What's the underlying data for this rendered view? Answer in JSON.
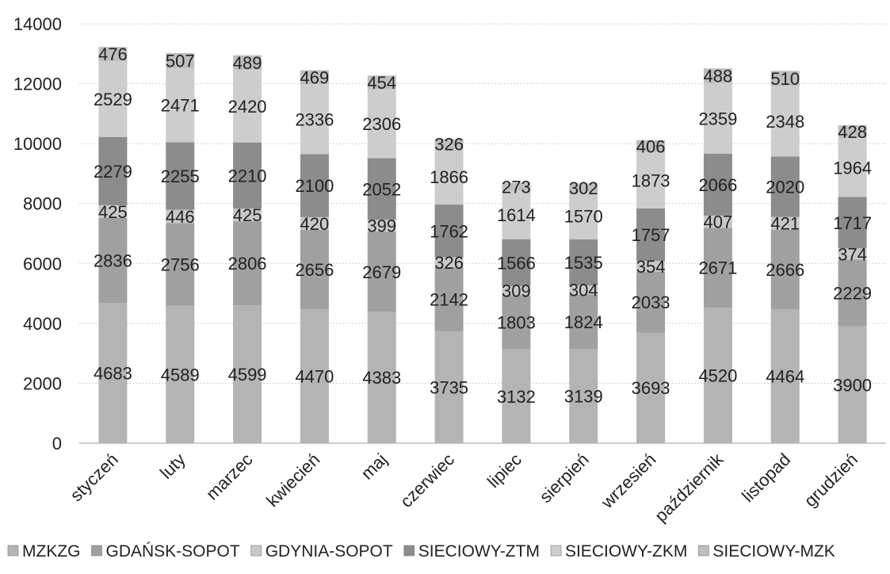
{
  "chart_data": {
    "type": "bar",
    "stacked": true,
    "categories": [
      "styczeń",
      "luty",
      "marzec",
      "kwiecień",
      "maj",
      "czerwiec",
      "lipiec",
      "sierpień",
      "wrzesień",
      "październik",
      "listopad",
      "grudzień"
    ],
    "series": [
      {
        "name": "MZKZG",
        "color": "#b4b4b4",
        "values": [
          4683,
          4589,
          4599,
          4470,
          4383,
          3735,
          3132,
          3139,
          3693,
          4520,
          4464,
          3900
        ]
      },
      {
        "name": "GDAŃSK-SOPOT",
        "color": "#a0a0a0",
        "values": [
          2836,
          2756,
          2806,
          2656,
          2679,
          2142,
          1803,
          1824,
          2033,
          2671,
          2666,
          2229
        ]
      },
      {
        "name": "GDYNIA-SOPOT",
        "color": "#c8c8c8",
        "values": [
          425,
          446,
          425,
          420,
          399,
          326,
          309,
          304,
          354,
          407,
          421,
          374
        ]
      },
      {
        "name": "SIECIOWY-ZTM",
        "color": "#8c8c8c",
        "values": [
          2279,
          2255,
          2210,
          2100,
          2052,
          1762,
          1566,
          1535,
          1757,
          2066,
          2020,
          1717
        ]
      },
      {
        "name": "SIECIOWY-ZKM",
        "color": "#cdcdcd",
        "values": [
          2529,
          2471,
          2420,
          2336,
          2306,
          1866,
          1614,
          1570,
          1873,
          2359,
          2348,
          1964
        ]
      },
      {
        "name": "SIECIOWY-MZK",
        "color": "#bebebe",
        "values": [
          476,
          507,
          489,
          469,
          454,
          326,
          273,
          302,
          406,
          488,
          510,
          428
        ]
      }
    ],
    "ylim": [
      0,
      14000
    ],
    "yticks": [
      0,
      2000,
      4000,
      6000,
      8000,
      10000,
      12000,
      14000
    ],
    "grid": true,
    "legend_position": "bottom",
    "data_labels": true
  }
}
